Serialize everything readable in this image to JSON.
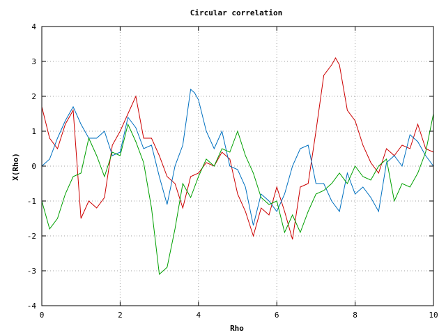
{
  "chart_data": {
    "type": "line",
    "title": "Circular correlation",
    "xlabel": "Rho",
    "ylabel": "X(Rho)",
    "xlim": [
      0,
      10
    ],
    "ylim": [
      -4,
      4
    ],
    "grid": true,
    "xticks": [
      0,
      2,
      4,
      6,
      8,
      10
    ],
    "yticks": [
      -4,
      -3,
      -2,
      -1,
      0,
      1,
      2,
      3,
      4
    ],
    "xtick_labels": [
      "0",
      "2",
      "4",
      "6",
      "8",
      "10"
    ],
    "ytick_labels": [
      "-4",
      "-3",
      "-2",
      "-1",
      "0",
      "1",
      "2",
      "3",
      "4"
    ],
    "series": [
      {
        "color": "#cc0000",
        "x": [
          0.0,
          0.2,
          0.4,
          0.6,
          0.8,
          1.0,
          1.2,
          1.4,
          1.6,
          1.8,
          2.0,
          2.2,
          2.4,
          2.6,
          2.8,
          3.0,
          3.2,
          3.4,
          3.6,
          3.8,
          4.0,
          4.2,
          4.4,
          4.6,
          4.8,
          5.0,
          5.2,
          5.4,
          5.6,
          5.8,
          6.0,
          6.2,
          6.4,
          6.6,
          6.8,
          7.0,
          7.2,
          7.4,
          7.5,
          7.6,
          7.8,
          8.0,
          8.2,
          8.4,
          8.6,
          8.8,
          9.0,
          9.2,
          9.4,
          9.6,
          9.8,
          10.0
        ],
        "values": [
          1.7,
          0.8,
          0.5,
          1.2,
          1.6,
          -1.5,
          -1.0,
          -1.2,
          -0.9,
          0.6,
          1.0,
          1.5,
          2.0,
          0.8,
          0.8,
          0.3,
          -0.3,
          -0.5,
          -1.2,
          -0.3,
          -0.2,
          0.1,
          0.0,
          0.4,
          0.2,
          -0.8,
          -1.3,
          -2.0,
          -1.2,
          -1.4,
          -0.6,
          -1.3,
          -2.1,
          -0.6,
          -0.5,
          1.0,
          2.6,
          2.9,
          3.1,
          2.9,
          1.6,
          1.3,
          0.6,
          0.1,
          -0.2,
          0.5,
          0.3,
          0.6,
          0.5,
          1.2,
          0.5,
          0.4
        ]
      },
      {
        "color": "#0070c0",
        "x": [
          0.0,
          0.2,
          0.4,
          0.6,
          0.8,
          1.0,
          1.2,
          1.4,
          1.6,
          1.8,
          2.0,
          2.2,
          2.4,
          2.6,
          2.8,
          3.0,
          3.2,
          3.4,
          3.6,
          3.8,
          3.9,
          4.0,
          4.2,
          4.4,
          4.6,
          4.8,
          5.0,
          5.2,
          5.4,
          5.6,
          5.8,
          6.0,
          6.2,
          6.4,
          6.6,
          6.8,
          7.0,
          7.2,
          7.4,
          7.6,
          7.8,
          8.0,
          8.2,
          8.4,
          8.6,
          8.8,
          9.0,
          9.2,
          9.4,
          9.6,
          9.8,
          10.0
        ],
        "values": [
          0.0,
          0.2,
          0.8,
          1.3,
          1.7,
          1.2,
          0.8,
          0.8,
          1.0,
          0.3,
          0.4,
          1.4,
          1.1,
          0.5,
          0.6,
          -0.3,
          -1.1,
          0.0,
          0.6,
          2.2,
          2.1,
          1.9,
          1.0,
          0.5,
          1.0,
          0.0,
          -0.1,
          -0.6,
          -1.7,
          -0.8,
          -1.0,
          -1.3,
          -0.8,
          0.0,
          0.5,
          0.6,
          -0.5,
          -0.5,
          -1.0,
          -1.3,
          -0.2,
          -0.8,
          -0.6,
          -0.9,
          -1.3,
          0.1,
          0.3,
          0.0,
          0.9,
          0.7,
          0.3,
          0.0
        ]
      },
      {
        "color": "#00a000",
        "x": [
          0.0,
          0.2,
          0.4,
          0.6,
          0.8,
          1.0,
          1.2,
          1.4,
          1.6,
          1.8,
          2.0,
          2.2,
          2.4,
          2.6,
          2.8,
          3.0,
          3.2,
          3.4,
          3.6,
          3.8,
          4.0,
          4.2,
          4.4,
          4.6,
          4.8,
          5.0,
          5.2,
          5.4,
          5.6,
          5.8,
          6.0,
          6.2,
          6.4,
          6.6,
          6.8,
          7.0,
          7.2,
          7.4,
          7.6,
          7.8,
          8.0,
          8.2,
          8.4,
          8.6,
          8.8,
          9.0,
          9.2,
          9.4,
          9.6,
          9.8,
          10.0
        ],
        "values": [
          -1.0,
          -1.8,
          -1.5,
          -0.8,
          -0.3,
          -0.2,
          0.8,
          0.3,
          -0.3,
          0.4,
          0.3,
          1.2,
          0.7,
          0.1,
          -1.2,
          -3.1,
          -2.9,
          -1.8,
          -0.5,
          -0.9,
          -0.3,
          0.2,
          0.0,
          0.5,
          0.4,
          1.0,
          0.3,
          -0.2,
          -0.9,
          -1.1,
          -1.0,
          -1.9,
          -1.4,
          -1.9,
          -1.3,
          -0.8,
          -0.7,
          -0.5,
          -0.2,
          -0.5,
          0.0,
          -0.3,
          -0.4,
          0.0,
          0.2,
          -1.0,
          -0.5,
          -0.6,
          -0.2,
          0.4,
          1.5
        ]
      }
    ]
  }
}
